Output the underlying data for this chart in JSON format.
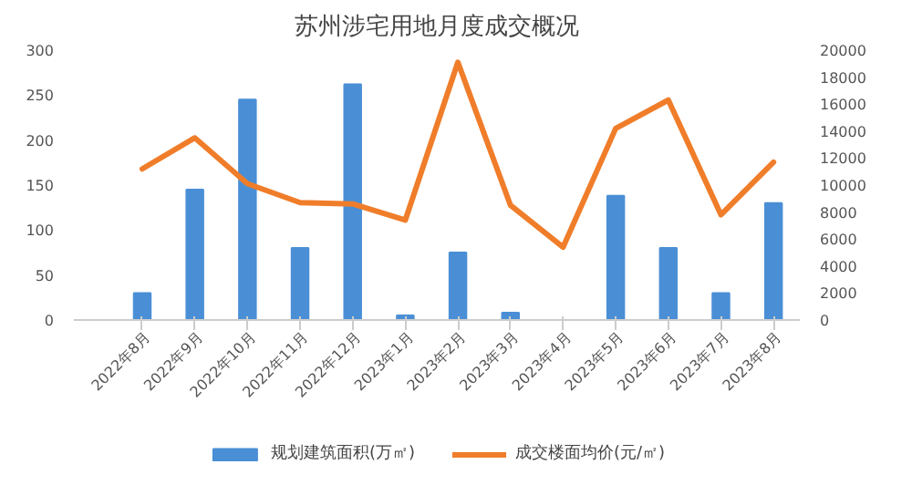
{
  "chart_data": {
    "type": "bar",
    "title": "苏州涉宅用地月度成交概况",
    "categories": [
      "2022年8月",
      "2022年9月",
      "2022年10月",
      "2022年11月",
      "2022年12月",
      "2023年1月",
      "2023年2月",
      "2023年3月",
      "2023年4月",
      "2023年5月",
      "2023年6月",
      "2023年7月",
      "2023年8月"
    ],
    "series": [
      {
        "name": "规划建筑面积(万㎡)",
        "color": "#4a8fd6",
        "values": [
          30,
          145,
          245,
          80,
          262,
          5,
          75,
          8,
          null,
          138,
          80,
          30,
          130
        ]
      },
      {
        "name": "成交楼面均价(元/㎡)",
        "color": "#f07d2a",
        "type": "line",
        "axis": "y2",
        "values": [
          11200,
          13500,
          10100,
          8700,
          8600,
          7400,
          19100,
          8500,
          5400,
          14200,
          16300,
          7800,
          11700
        ]
      }
    ],
    "ylim": [
      0,
      300
    ],
    "yticks": [
      0,
      50,
      100,
      150,
      200,
      250,
      300
    ],
    "y2lim": [
      0,
      20000
    ],
    "y2ticks": [
      0,
      2000,
      4000,
      6000,
      8000,
      10000,
      12000,
      14000,
      16000,
      18000,
      20000
    ],
    "legend": "bottom",
    "grid": false
  }
}
